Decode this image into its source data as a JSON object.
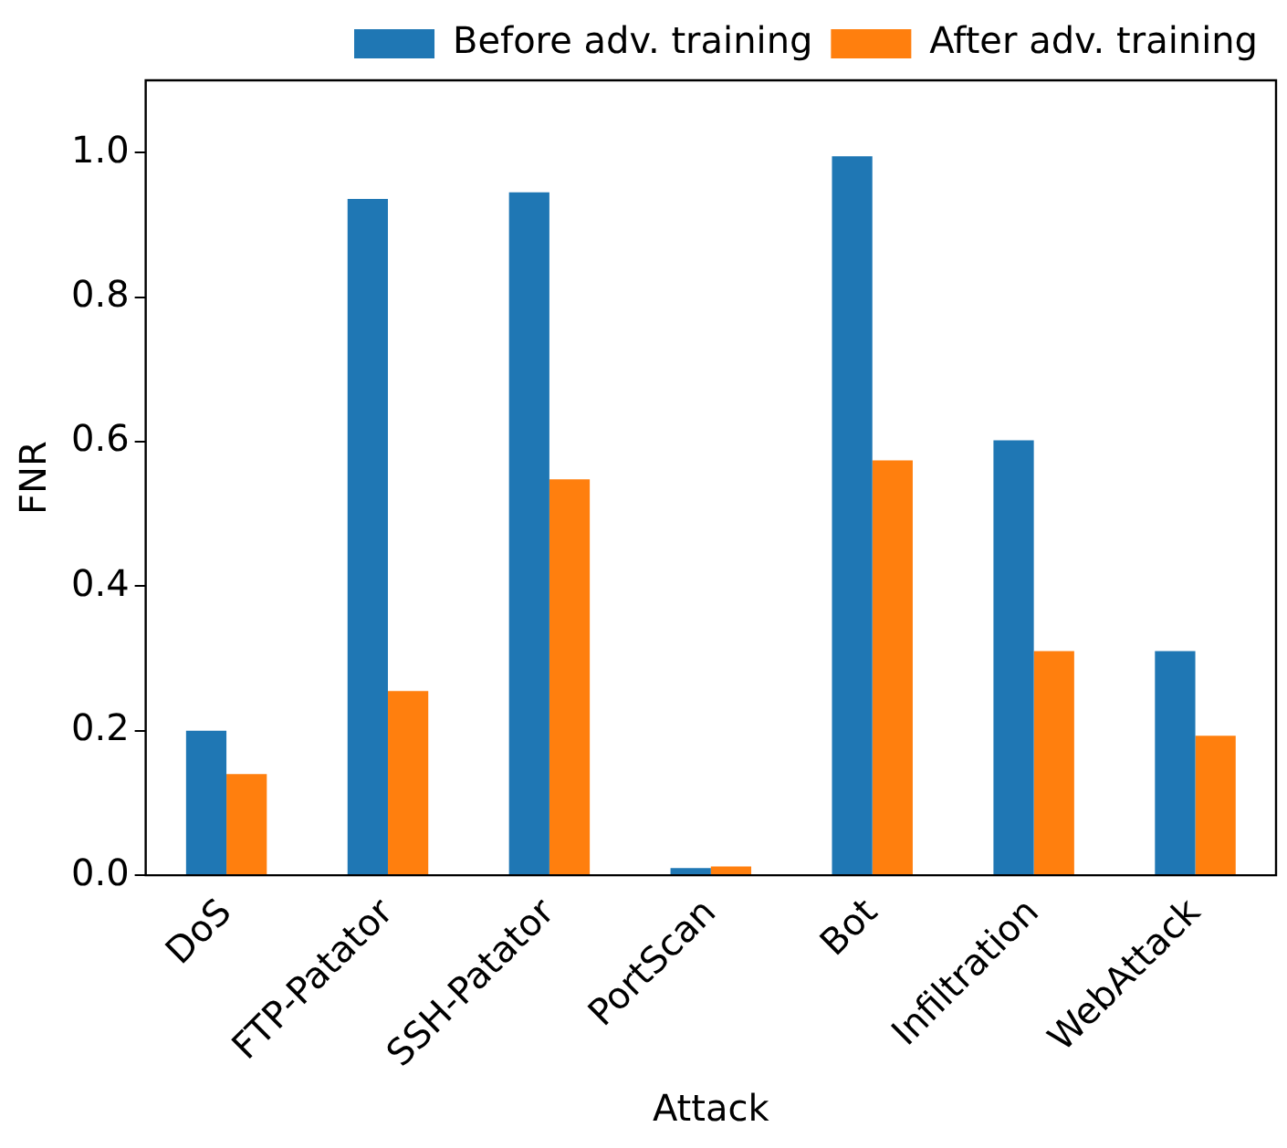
{
  "chart_data": {
    "type": "bar",
    "xlabel": "Attack",
    "ylabel": "FNR",
    "categories": [
      "DoS",
      "FTP-Patator",
      "SSH-Patator",
      "PortScan",
      "Bot",
      "Infiltration",
      "WebAttack"
    ],
    "series": [
      {
        "name": "Before adv. training",
        "color": "#1f77b4",
        "values": [
          0.2,
          0.936,
          0.945,
          0.01,
          0.995,
          0.602,
          0.31
        ]
      },
      {
        "name": "After adv. training",
        "color": "#ff7f0e",
        "values": [
          0.14,
          0.255,
          0.548,
          0.012,
          0.574,
          0.31,
          0.193
        ]
      }
    ],
    "ylim": [
      0,
      1.1
    ],
    "yticks": [
      {
        "value": 0,
        "label": "0.0"
      },
      {
        "value": 0.2,
        "label": "0.2"
      },
      {
        "value": 0.4,
        "label": "0.4"
      },
      {
        "value": 0.6,
        "label": "0.6"
      },
      {
        "value": 0.8,
        "label": "0.8"
      },
      {
        "value": 1,
        "label": "1.0"
      }
    ],
    "grid": false,
    "legend": "top right"
  }
}
